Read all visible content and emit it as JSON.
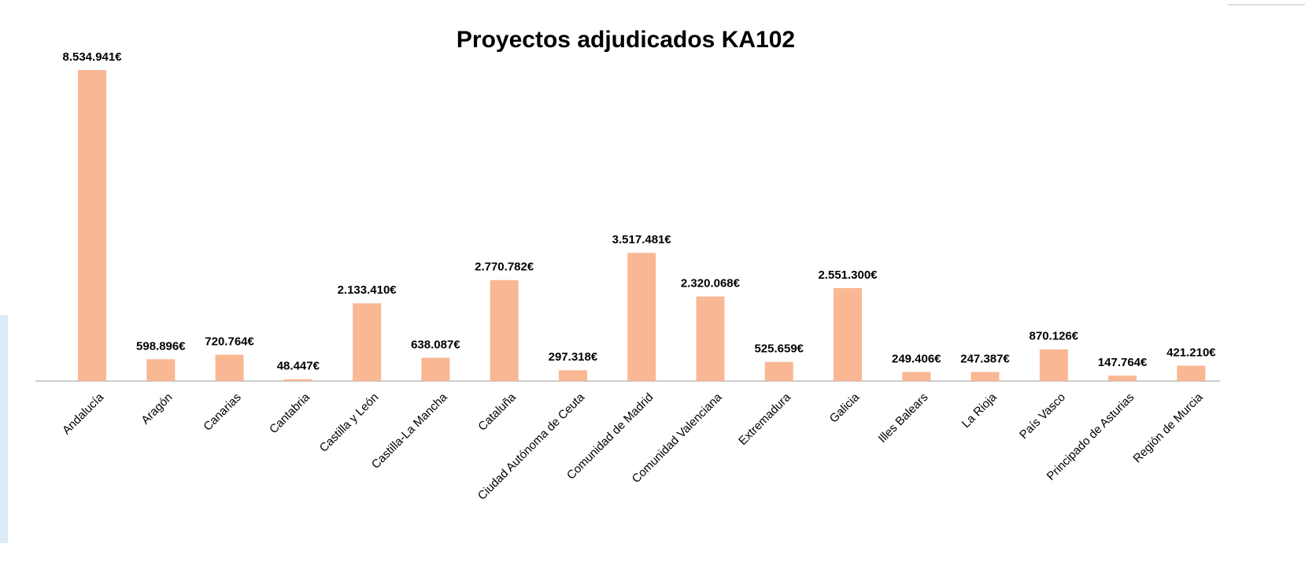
{
  "chart_data": {
    "type": "bar",
    "title": "Proyectos adjudicados KA102",
    "categories": [
      "Andalucía",
      "Aragón",
      "Canarias",
      "Cantabria",
      "Castilla y León",
      "Castilla-La Mancha",
      "Cataluña",
      "Ciudad Autónoma de Ceuta",
      "Comunidad de Madrid",
      "Comunidad Valenciana",
      "Extremadura",
      "Galicia",
      "Illes Balears",
      "La Rioja",
      "País Vasco",
      "Principado de Asturias",
      "Región de Murcia"
    ],
    "values": [
      8534941,
      598896,
      720764,
      48447,
      2133410,
      638087,
      2770782,
      297318,
      3517481,
      2320068,
      525659,
      2551300,
      249406,
      247387,
      870126,
      147764,
      421210
    ],
    "value_labels": [
      "8.534.941€",
      "598.896€",
      "720.764€",
      "48.447€",
      "2.133.410€",
      "638.087€",
      "2.770.782€",
      "297.318€",
      "3.517.481€",
      "2.320.068€",
      "525.659€",
      "2.551.300€",
      "249.406€",
      "247.387€",
      "870.126€",
      "147.764€",
      "421.210€"
    ],
    "color": "#f9b793"
  }
}
